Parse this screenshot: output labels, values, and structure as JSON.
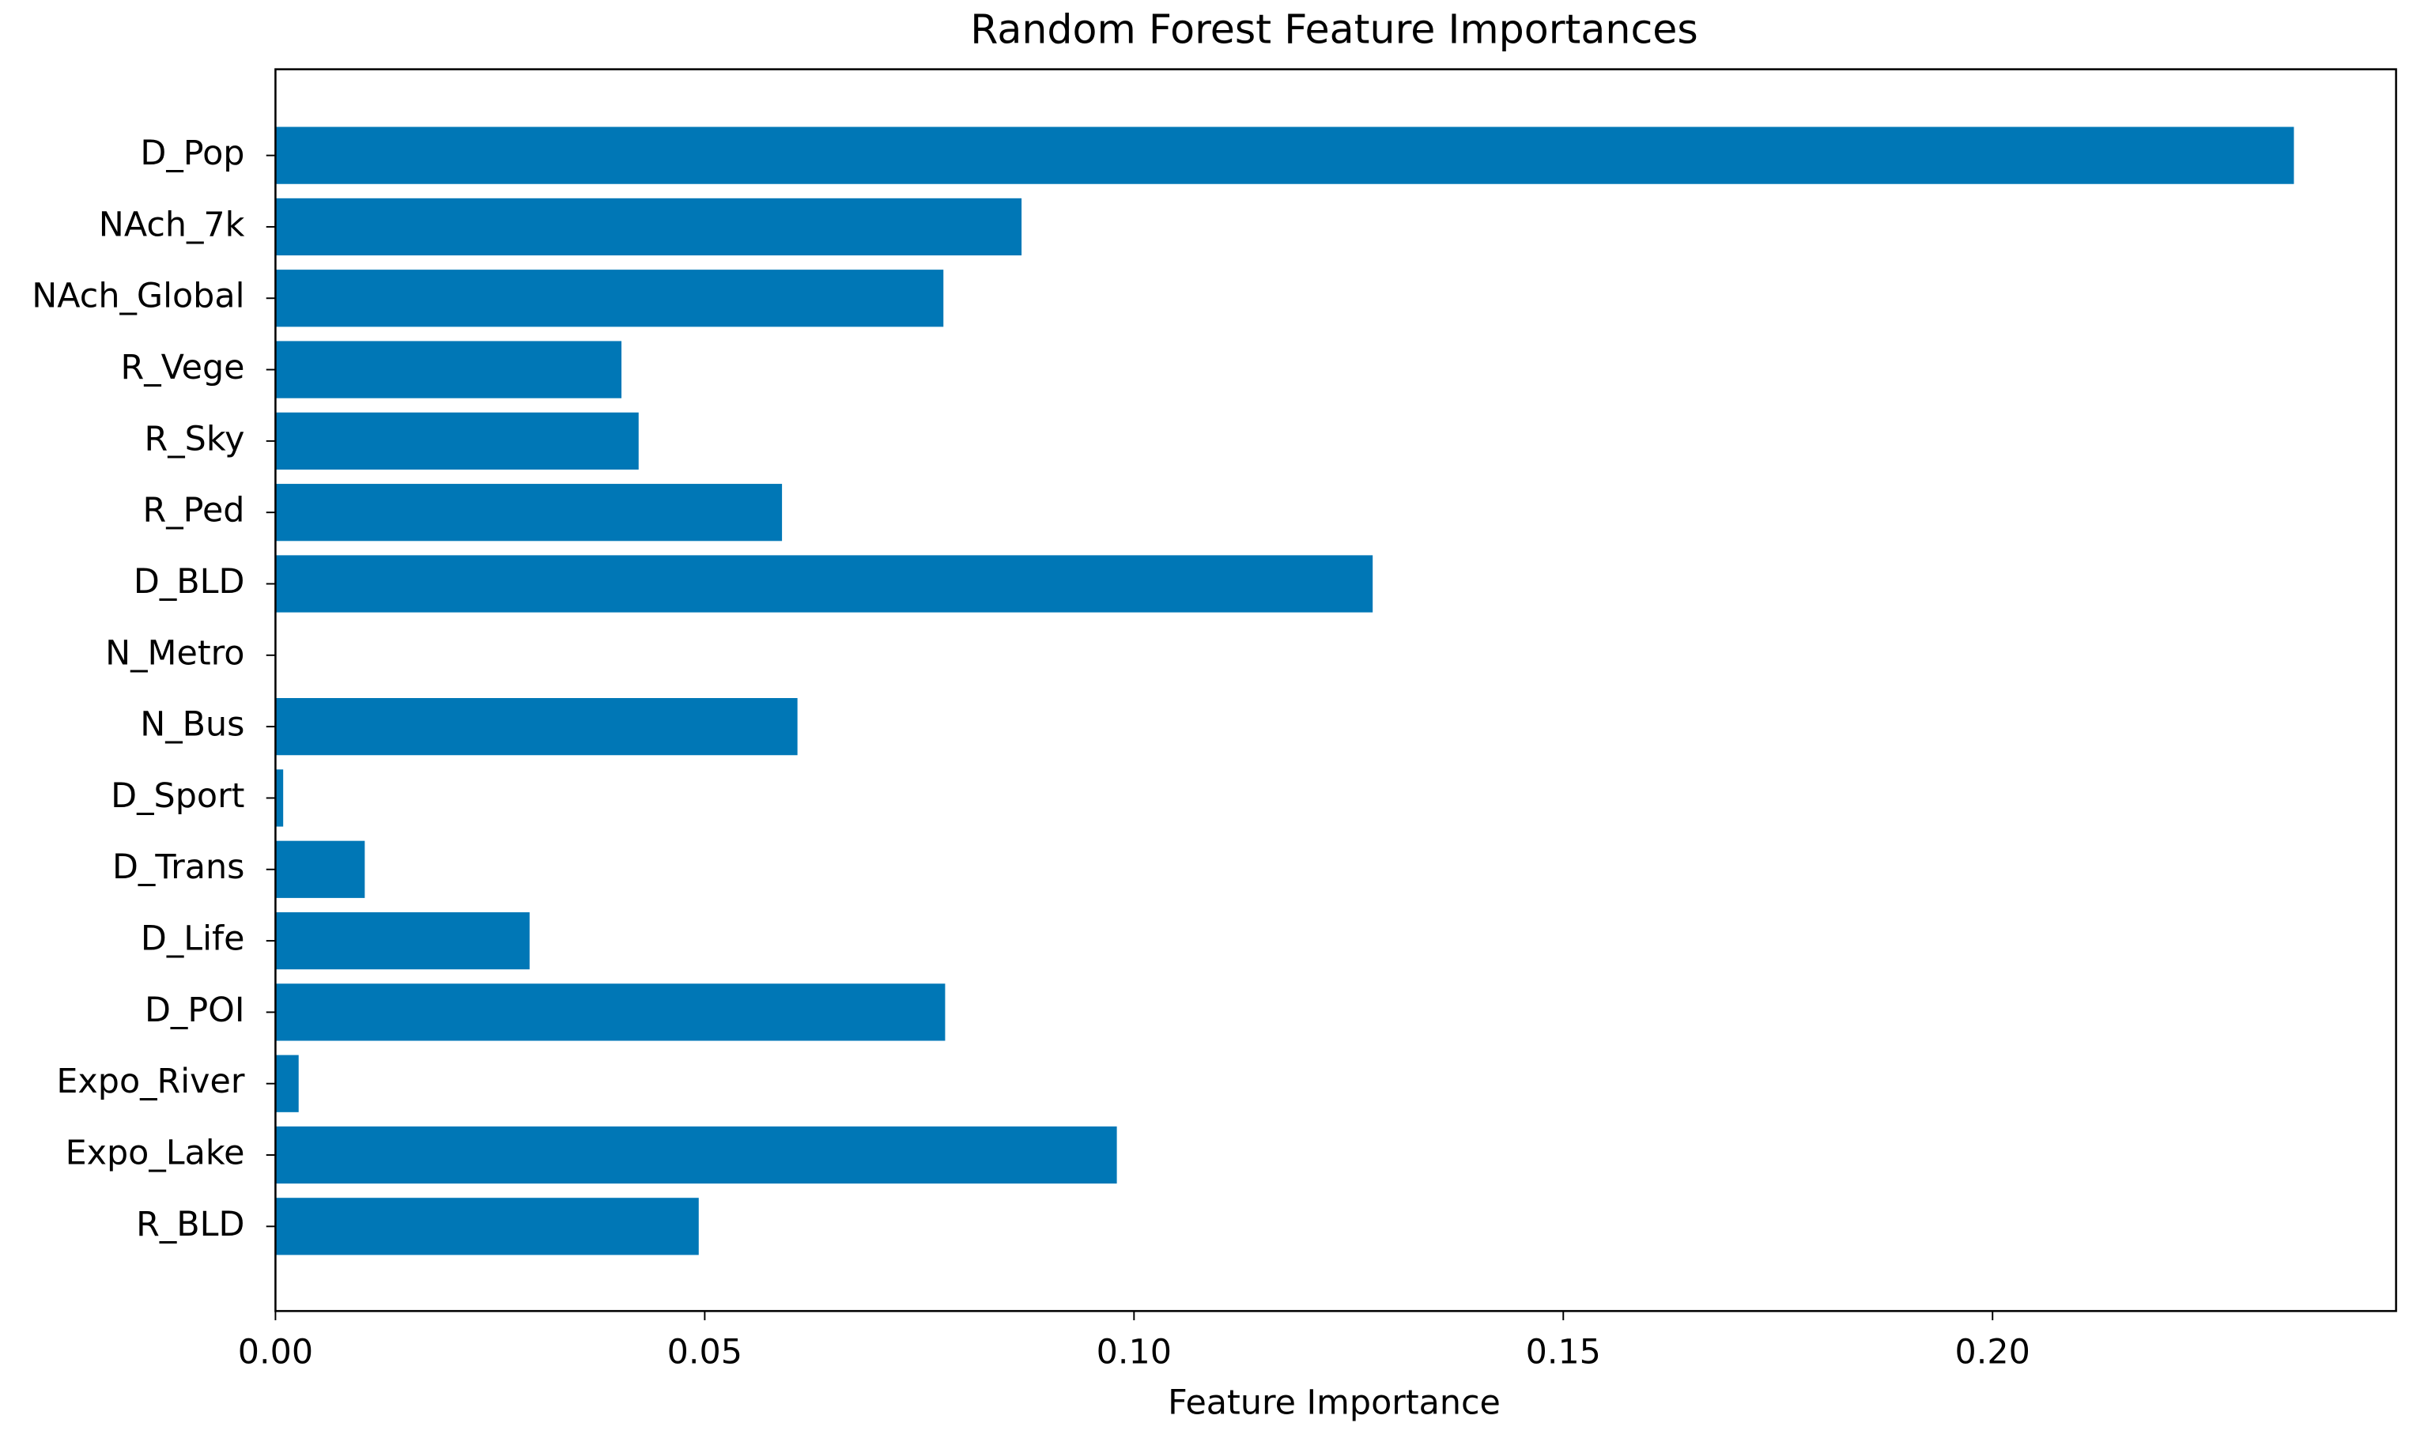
{
  "chart_data": {
    "type": "barh",
    "title": "Random Forest Feature Importances",
    "x_label": "Feature Importance",
    "categories": [
      "D_Pop",
      "NAch_7k",
      "NAch_Global",
      "R_Vege",
      "R_Sky",
      "R_Ped",
      "D_BLD",
      "N_Metro",
      "N_Bus",
      "D_Sport",
      "D_Trans",
      "D_Life",
      "D_POI",
      "Expo_River",
      "Expo_Lake",
      "R_BLD"
    ],
    "values": [
      0.2351,
      0.0869,
      0.0778,
      0.0403,
      0.0423,
      0.059,
      0.1278,
      0,
      0.0608,
      0.0009,
      0.0104,
      0.0296,
      0.078,
      0.0027,
      0.098,
      0.0493
    ],
    "color": "#0077b6",
    "xlim": [
      0,
      0.247
    ],
    "xticks": [
      {
        "value": 0,
        "label": "0.00"
      },
      {
        "value": 0.05,
        "label": "0.05"
      },
      {
        "value": 0.1,
        "label": "0.10"
      },
      {
        "value": 0.15,
        "label": "0.15"
      },
      {
        "value": 0.2,
        "label": "0.20"
      }
    ],
    "grid": false
  }
}
